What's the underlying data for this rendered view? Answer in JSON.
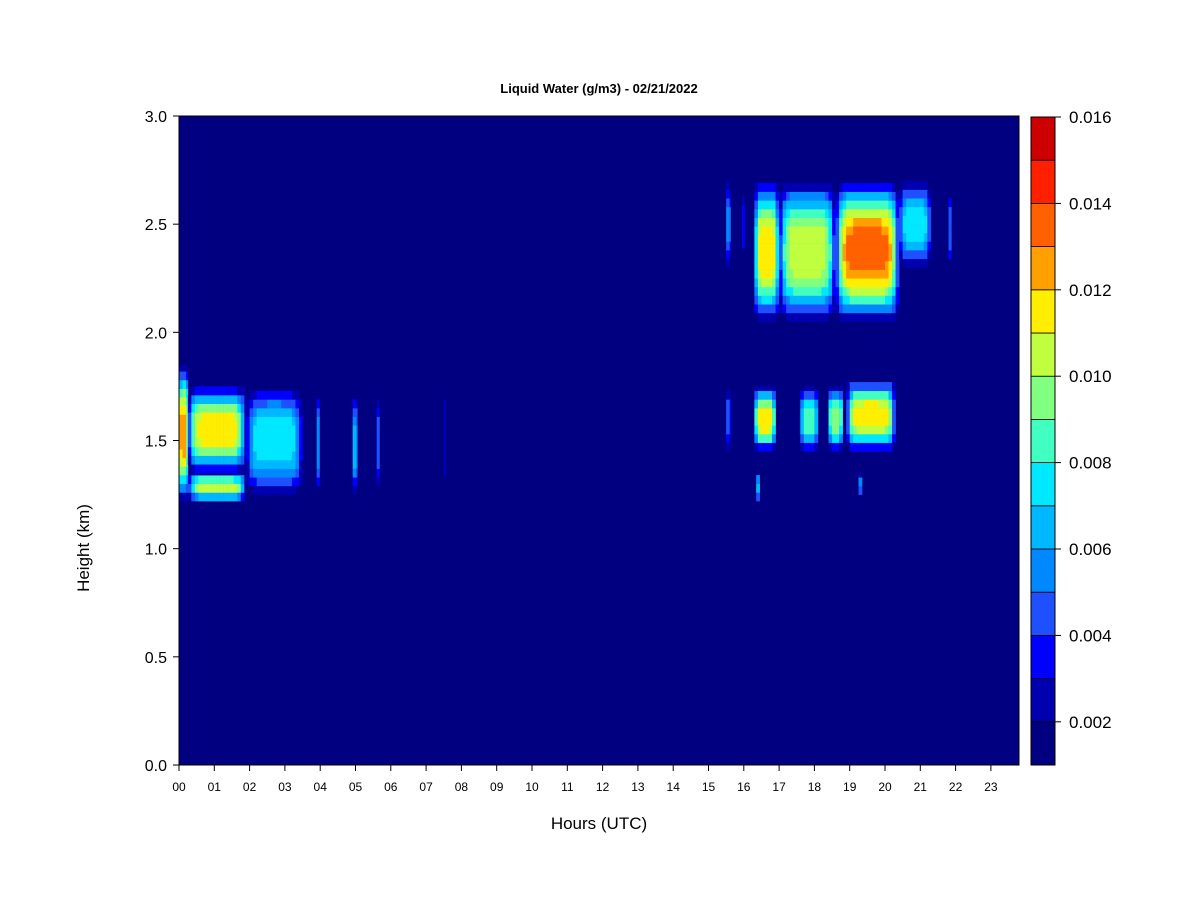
{
  "chart_data": {
    "type": "heatmap",
    "title": "Liquid Water (g/m3) - 02/21/2022",
    "xlabel": "Hours (UTC)",
    "ylabel": "Height (km)",
    "x_ticks": [
      "00",
      "01",
      "02",
      "03",
      "04",
      "05",
      "06",
      "07",
      "08",
      "09",
      "10",
      "11",
      "12",
      "13",
      "14",
      "15",
      "16",
      "17",
      "18",
      "19",
      "20",
      "21",
      "22",
      "23"
    ],
    "y_ticks": [
      "0.0",
      "0.5",
      "1.0",
      "1.5",
      "2.0",
      "2.5",
      "3.0"
    ],
    "xlim": [
      0,
      23.8
    ],
    "ylim": [
      0,
      3.0
    ],
    "background_value": 0.001,
    "colorbar": {
      "range": [
        0.001,
        0.016
      ],
      "levels": [
        0.001,
        0.002,
        0.003,
        0.004,
        0.005,
        0.006,
        0.007,
        0.008,
        0.009,
        0.01,
        0.011,
        0.012,
        0.013,
        0.014,
        0.015,
        0.016
      ],
      "colors": [
        "#000080",
        "#0000b0",
        "#0000ff",
        "#1e50ff",
        "#0088ff",
        "#00b8ff",
        "#00e8ff",
        "#40ffc0",
        "#80ff80",
        "#c0ff40",
        "#ffee00",
        "#ffa000",
        "#ff6000",
        "#ff2000",
        "#cc0000",
        "#800000"
      ],
      "tick_labels": [
        "0.002",
        "0.004",
        "0.006",
        "0.008",
        "0.010",
        "0.012",
        "0.014",
        "0.016"
      ],
      "tick_values": [
        0.002,
        0.004,
        0.006,
        0.008,
        0.01,
        0.012,
        0.014,
        0.016
      ]
    },
    "cloud_features": [
      {
        "x_start": 0.0,
        "x_end": 0.25,
        "y_bottom": 1.22,
        "y_top": 1.85,
        "peak": 0.013
      },
      {
        "x_start": 0.25,
        "x_end": 1.9,
        "y_bottom": 1.35,
        "y_top": 1.75,
        "peak": 0.012
      },
      {
        "x_start": 0.25,
        "x_end": 1.9,
        "y_bottom": 1.22,
        "y_top": 1.35,
        "peak": 0.011
      },
      {
        "x_start": 1.9,
        "x_end": 3.5,
        "y_bottom": 1.25,
        "y_top": 1.75,
        "peak": 0.008
      },
      {
        "x_start": 3.9,
        "x_end": 3.98,
        "y_bottom": 1.25,
        "y_top": 1.72,
        "peak": 0.006
      },
      {
        "x_start": 4.92,
        "x_end": 5.05,
        "y_bottom": 1.25,
        "y_top": 1.72,
        "peak": 0.007
      },
      {
        "x_start": 5.6,
        "x_end": 5.68,
        "y_bottom": 1.25,
        "y_top": 1.72,
        "peak": 0.005
      },
      {
        "x_start": 7.5,
        "x_end": 7.56,
        "y_bottom": 1.25,
        "y_top": 1.75,
        "peak": 0.003
      },
      {
        "x_start": 15.5,
        "x_end": 15.62,
        "y_bottom": 2.3,
        "y_top": 2.7,
        "peak": 0.006
      },
      {
        "x_start": 15.5,
        "x_end": 15.62,
        "y_bottom": 1.45,
        "y_top": 1.75,
        "peak": 0.005
      },
      {
        "x_start": 15.95,
        "x_end": 16.02,
        "y_bottom": 2.35,
        "y_top": 2.65,
        "peak": 0.004
      },
      {
        "x_start": 16.3,
        "x_end": 17.0,
        "y_bottom": 2.05,
        "y_top": 2.7,
        "peak": 0.012
      },
      {
        "x_start": 17.0,
        "x_end": 18.6,
        "y_bottom": 2.05,
        "y_top": 2.7,
        "peak": 0.011
      },
      {
        "x_start": 18.6,
        "x_end": 20.4,
        "y_bottom": 2.05,
        "y_top": 2.7,
        "peak": 0.014
      },
      {
        "x_start": 20.4,
        "x_end": 21.3,
        "y_bottom": 2.3,
        "y_top": 2.7,
        "peak": 0.008
      },
      {
        "x_start": 21.8,
        "x_end": 21.88,
        "y_bottom": 2.3,
        "y_top": 2.65,
        "peak": 0.005
      },
      {
        "x_start": 16.3,
        "x_end": 16.9,
        "y_bottom": 1.45,
        "y_top": 1.75,
        "peak": 0.012
      },
      {
        "x_start": 16.35,
        "x_end": 16.45,
        "y_bottom": 1.22,
        "y_top": 1.35,
        "peak": 0.007
      },
      {
        "x_start": 17.6,
        "x_end": 18.1,
        "y_bottom": 1.45,
        "y_top": 1.75,
        "peak": 0.009
      },
      {
        "x_start": 18.4,
        "x_end": 18.8,
        "y_bottom": 1.45,
        "y_top": 1.75,
        "peak": 0.01
      },
      {
        "x_start": 18.9,
        "x_end": 20.3,
        "y_bottom": 1.45,
        "y_top": 1.78,
        "peak": 0.012
      },
      {
        "x_start": 19.25,
        "x_end": 19.35,
        "y_bottom": 1.25,
        "y_top": 1.35,
        "peak": 0.006
      }
    ]
  }
}
